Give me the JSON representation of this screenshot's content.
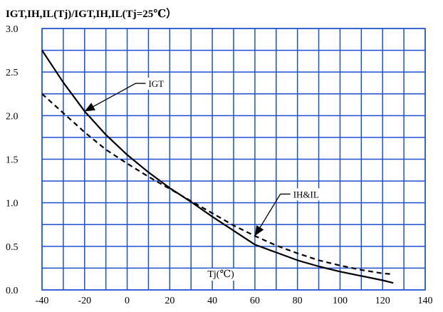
{
  "chart_data": {
    "type": "line",
    "title": "IGT,IH,IL(Tj)/IGT,IH,IL(Tj=25℃）",
    "xlabel": "Tj(℃)",
    "ylabel": "",
    "xlim": [
      -40,
      140
    ],
    "ylim": [
      0.0,
      3.0
    ],
    "x_ticks": [
      -40,
      -20,
      0,
      20,
      40,
      60,
      80,
      100,
      120,
      140
    ],
    "x_tick_labels": [
      "-40",
      "-20",
      "0",
      "20",
      "40",
      "60",
      "80",
      "100",
      "120",
      "140"
    ],
    "y_ticks": [
      0.0,
      0.5,
      1.0,
      1.5,
      2.0,
      2.5,
      3.0
    ],
    "y_tick_labels": [
      "0.0",
      "0.5",
      "1.0",
      "1.5",
      "2.0",
      "2.5",
      "3.0"
    ],
    "grid": true,
    "grid_minor_x": [
      -30,
      -10,
      10,
      30,
      50,
      70,
      90,
      110,
      130
    ],
    "grid_minor_y": [
      0.25,
      0.75,
      1.25,
      1.75,
      2.25,
      2.75
    ],
    "grid_color": "#1f4fd1",
    "series": [
      {
        "name": "IGT",
        "style": "solid",
        "color": "#000000",
        "x": [
          -40,
          -30,
          -20,
          -10,
          0,
          10,
          20,
          25,
          30,
          40,
          50,
          60,
          70,
          80,
          90,
          100,
          110,
          120,
          125
        ],
        "y": [
          2.75,
          2.38,
          2.05,
          1.78,
          1.55,
          1.35,
          1.17,
          1.09,
          1.01,
          0.84,
          0.68,
          0.52,
          0.43,
          0.34,
          0.27,
          0.21,
          0.16,
          0.11,
          0.08
        ]
      },
      {
        "name": "IH&IL",
        "style": "dashed",
        "color": "#000000",
        "x": [
          -40,
          -30,
          -20,
          -10,
          0,
          10,
          20,
          25,
          30,
          40,
          50,
          60,
          70,
          80,
          90,
          100,
          110,
          120,
          125
        ],
        "y": [
          2.25,
          2.03,
          1.81,
          1.61,
          1.45,
          1.3,
          1.16,
          1.09,
          1.02,
          0.88,
          0.74,
          0.62,
          0.51,
          0.42,
          0.34,
          0.28,
          0.23,
          0.19,
          0.18
        ]
      }
    ],
    "annotations": [
      {
        "text": "IGT",
        "target": [
          -20,
          2.05
        ],
        "label_at": [
          10,
          2.37
        ]
      },
      {
        "text": "IH&IL",
        "target": [
          60,
          0.62
        ],
        "label_at": [
          78,
          1.1
        ]
      }
    ]
  }
}
